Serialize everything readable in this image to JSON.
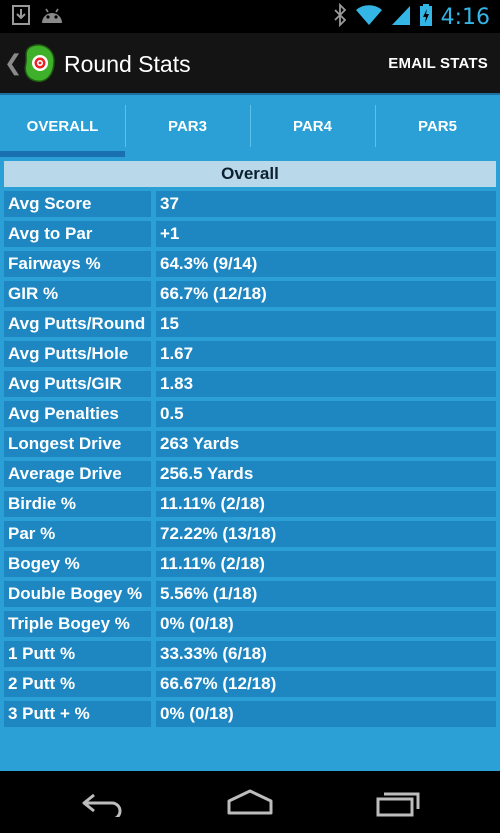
{
  "status_bar": {
    "time": "4:16",
    "left_icons": [
      "download-icon",
      "android-icon"
    ],
    "right_icons": [
      "bluetooth-icon",
      "wifi-icon",
      "signal-icon",
      "battery-charging-icon"
    ]
  },
  "action_bar": {
    "title": "Round Stats",
    "email_label": "EMAIL STATS"
  },
  "tabs": [
    {
      "label": "OVERALL",
      "active": true
    },
    {
      "label": "PAR3",
      "active": false
    },
    {
      "label": "PAR4",
      "active": false
    },
    {
      "label": "PAR5",
      "active": false
    }
  ],
  "stats": {
    "header": "Overall",
    "rows": [
      {
        "label": "Avg Score",
        "value": "37"
      },
      {
        "label": "Avg to Par",
        "value": "+1"
      },
      {
        "label": "Fairways %",
        "value": "64.3% (9/14)"
      },
      {
        "label": "GIR %",
        "value": "66.7% (12/18)"
      },
      {
        "label": "Avg Putts/Round",
        "value": "15"
      },
      {
        "label": "Avg Putts/Hole",
        "value": "1.67"
      },
      {
        "label": "Avg Putts/GIR",
        "value": "1.83"
      },
      {
        "label": "Avg Penalties",
        "value": "0.5"
      },
      {
        "label": "Longest Drive",
        "value": "263 Yards"
      },
      {
        "label": "Average Drive",
        "value": "256.5 Yards"
      },
      {
        "label": "Birdie %",
        "value": "11.11% (2/18)"
      },
      {
        "label": "Par %",
        "value": "72.22% (13/18)"
      },
      {
        "label": "Bogey %",
        "value": "11.11% (2/18)"
      },
      {
        "label": "Double Bogey %",
        "value": "5.56% (1/18)"
      },
      {
        "label": "Triple Bogey %",
        "value": "0% (0/18)"
      },
      {
        "label": "1 Putt %",
        "value": "33.33% (6/18)"
      },
      {
        "label": "2 Putt %",
        "value": "66.67% (12/18)"
      },
      {
        "label": "3 Putt + %",
        "value": "0% (0/18)"
      }
    ]
  },
  "nav_bar": {
    "buttons": [
      "back-icon",
      "home-icon",
      "recent-apps-icon"
    ]
  },
  "colors": {
    "accent": "#33b5e5",
    "tab_background": "#2aa0d6",
    "cell_background": "#1e87c2",
    "header_background": "#b9d8ea",
    "active_indicator": "#1a6fb0"
  }
}
